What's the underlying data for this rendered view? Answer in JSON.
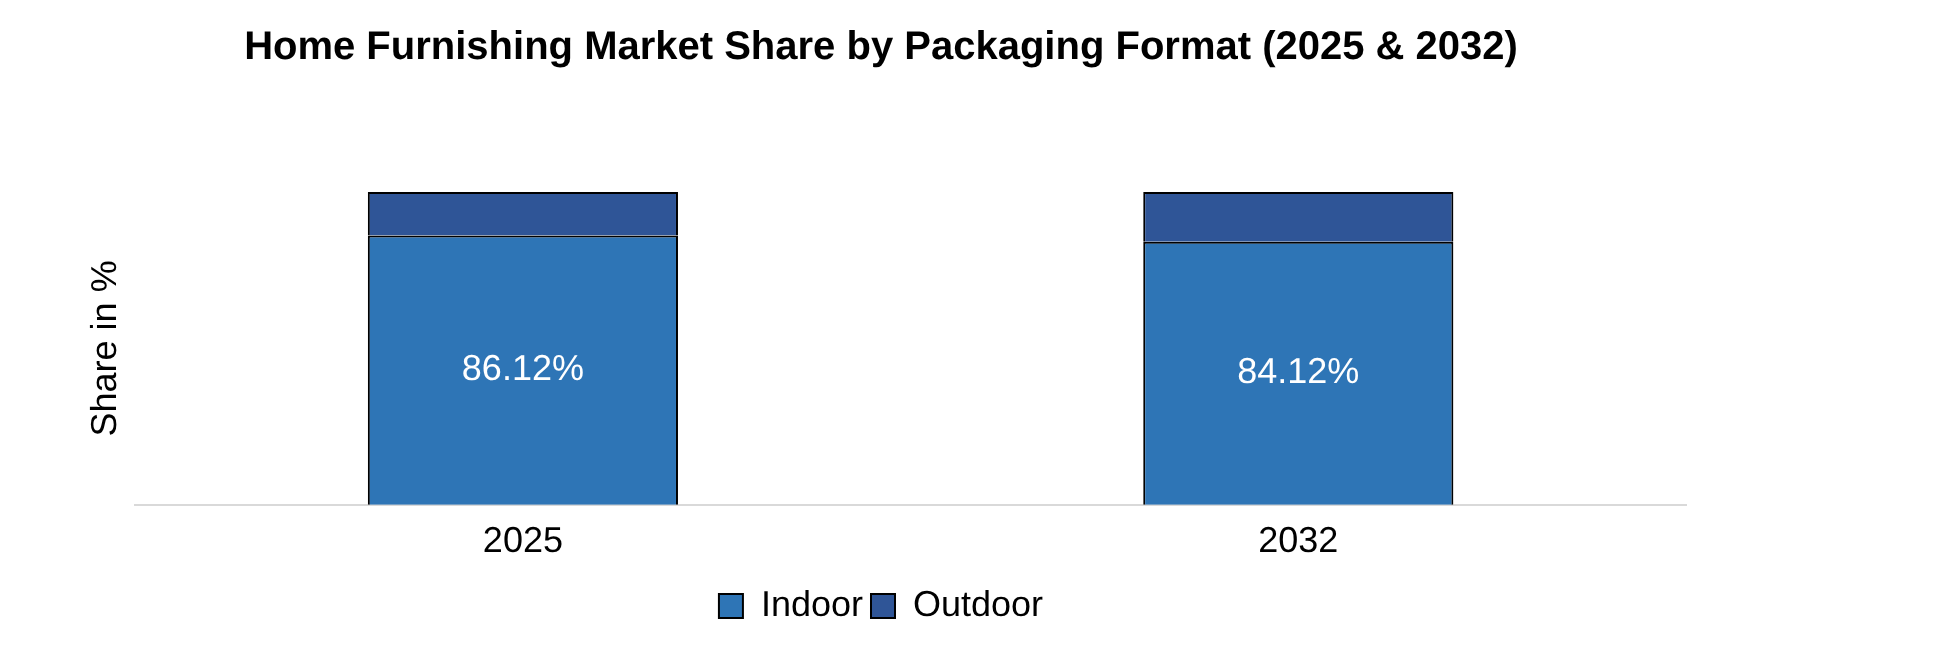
{
  "chart_data": {
    "type": "bar",
    "title": "Home Furnishing Market Share by Packaging Format (2025 & 2032)",
    "ylabel": "Share in %",
    "categories": [
      "2025",
      "2032"
    ],
    "stacked": true,
    "legend": "bottom",
    "grid": false,
    "tick_labels": "x",
    "series": [
      {
        "name": "Indoor",
        "color": "#2e75b6",
        "values": [
          86.12,
          84.12
        ],
        "value_labels": [
          "86.12%",
          "84.12%"
        ]
      },
      {
        "name": "Outdoor",
        "color": "#2f5597",
        "values": [
          13.88,
          15.88
        ]
      }
    ]
  }
}
